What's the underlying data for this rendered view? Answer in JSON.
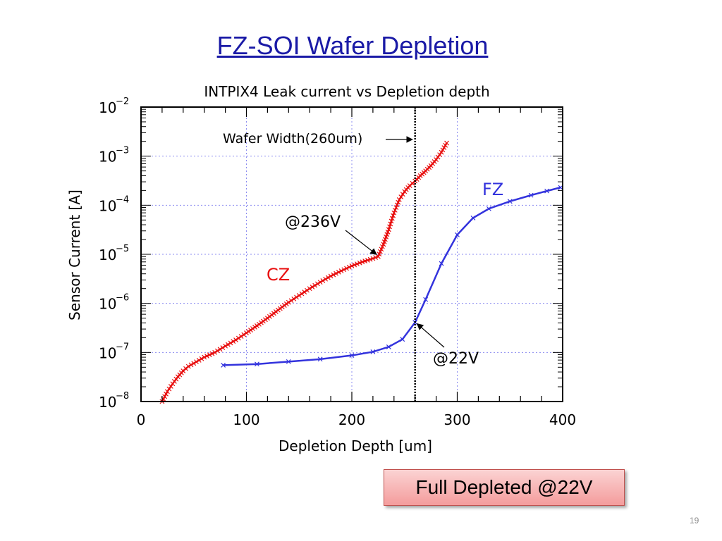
{
  "slide": {
    "title": "FZ-SOI Wafer Depletion",
    "callout": "Full Depleted @22V",
    "page_number": "19"
  },
  "chart_data": {
    "type": "line",
    "title": "INTPIX4 Leak current vs Depletion depth",
    "xlabel": "Depletion Depth [um]",
    "ylabel": "Sensor Current [A]",
    "xlim": [
      0,
      400
    ],
    "ylim": [
      1e-08,
      0.01
    ],
    "yscale": "log",
    "grid": true,
    "xticks": [
      "0",
      "100",
      "200",
      "300",
      "400"
    ],
    "yticks": [
      {
        "base": "10",
        "exp": "−2",
        "value": 0.01
      },
      {
        "base": "10",
        "exp": "−3",
        "value": 0.001
      },
      {
        "base": "10",
        "exp": "−4",
        "value": 0.0001
      },
      {
        "base": "10",
        "exp": "−5",
        "value": 1e-05
      },
      {
        "base": "10",
        "exp": "−6",
        "value": 1e-06
      },
      {
        "base": "10",
        "exp": "−7",
        "value": 1e-07
      },
      {
        "base": "10",
        "exp": "−8",
        "value": 1e-08
      }
    ],
    "series": [
      {
        "name": "CZ",
        "color": "#e81010",
        "marker": "x",
        "x": [
          20,
          25,
          30,
          35,
          40,
          45,
          50,
          60,
          70,
          80,
          90,
          100,
          110,
          120,
          130,
          140,
          150,
          160,
          170,
          180,
          190,
          200,
          210,
          220,
          225,
          230,
          235,
          240,
          245,
          250,
          255,
          260,
          265,
          270,
          275,
          280,
          285,
          290
        ],
        "y": [
          1e-08,
          1.6e-08,
          2.3e-08,
          3.2e-08,
          4.2e-08,
          5.2e-08,
          6e-08,
          8e-08,
          1e-07,
          1.35e-07,
          1.8e-07,
          2.5e-07,
          3.5e-07,
          5e-07,
          7.3e-07,
          1.05e-06,
          1.45e-06,
          2e-06,
          2.7e-06,
          3.6e-06,
          4.6e-06,
          5.8e-06,
          7e-06,
          8.2e-06,
          9e-06,
          1.6e-05,
          3.2e-05,
          7e-05,
          0.00013,
          0.00019,
          0.00025,
          0.00031,
          0.0004,
          0.0005,
          0.00064,
          0.00085,
          0.0012,
          0.00185
        ]
      },
      {
        "name": "FZ",
        "color": "#3333dd",
        "marker": "x",
        "x": [
          78,
          110,
          140,
          170,
          200,
          220,
          235,
          248,
          260,
          270,
          285,
          300,
          315,
          330,
          350,
          370,
          385,
          398
        ],
        "y": [
          5.5e-08,
          5.8e-08,
          6.5e-08,
          7.3e-08,
          8.7e-08,
          1.03e-07,
          1.3e-07,
          1.85e-07,
          4.1e-07,
          1.2e-06,
          6.5e-06,
          2.5e-05,
          5.5e-05,
          8.5e-05,
          0.00012,
          0.00016,
          0.000195,
          0.00023
        ]
      }
    ],
    "annotations": {
      "wafer_width": {
        "text": "Wafer Width(260um)",
        "x": 260
      },
      "cz_point": {
        "text": "@236V",
        "x": 226,
        "y": 9e-06
      },
      "fz_point": {
        "text": "@22V",
        "x": 260,
        "y": 4.1e-07
      },
      "cz_label": "CZ",
      "fz_label": "FZ"
    }
  }
}
